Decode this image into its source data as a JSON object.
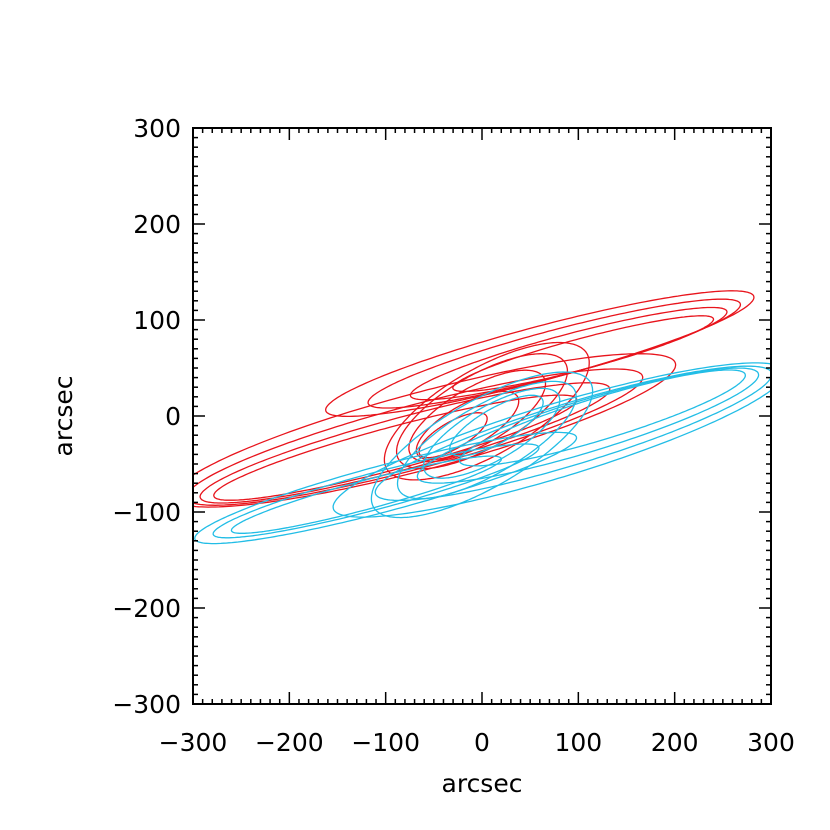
{
  "chart_data": {
    "type": "line",
    "xlabel": "arcsec",
    "ylabel": "arcsec",
    "xlim": [
      -300,
      300
    ],
    "ylim": [
      -300,
      300
    ],
    "x_ticks": [
      -300,
      -200,
      -100,
      0,
      100,
      200,
      300
    ],
    "y_ticks": [
      -300,
      -200,
      -100,
      0,
      100,
      200,
      300
    ],
    "x_tick_labels": [
      "−300",
      "−200",
      "−100",
      "0",
      "100",
      "200",
      "300"
    ],
    "y_tick_labels": [
      "−300",
      "−200",
      "−100",
      "0",
      "100",
      "200",
      "300"
    ],
    "grid": false,
    "legend": "none",
    "series": [
      {
        "color": "#e8141c",
        "contours": [
          {
            "cx": -60,
            "cy": -15,
            "a": 270,
            "b": 40,
            "angle_deg": 15
          },
          {
            "cx": -70,
            "cy": -22,
            "a": 245,
            "b": 33,
            "angle_deg": 15
          },
          {
            "cx": -80,
            "cy": -28,
            "a": 220,
            "b": 27,
            "angle_deg": 15
          },
          {
            "cx": -90,
            "cy": -33,
            "a": 195,
            "b": 22,
            "angle_deg": 15
          },
          {
            "cx": 60,
            "cy": 65,
            "a": 230,
            "b": 28,
            "angle_deg": 15
          },
          {
            "cx": 75,
            "cy": 65,
            "a": 200,
            "b": 24,
            "angle_deg": 15
          },
          {
            "cx": 90,
            "cy": 65,
            "a": 170,
            "b": 20,
            "angle_deg": 15
          },
          {
            "cx": 105,
            "cy": 65,
            "a": 140,
            "b": 16,
            "angle_deg": 15
          },
          {
            "cx": 5,
            "cy": 5,
            "a": 120,
            "b": 45,
            "angle_deg": 30
          },
          {
            "cx": 0,
            "cy": 5,
            "a": 100,
            "b": 38,
            "angle_deg": 30
          },
          {
            "cx": -5,
            "cy": 0,
            "a": 80,
            "b": 30,
            "angle_deg": 30
          },
          {
            "cx": -15,
            "cy": -10,
            "a": 60,
            "b": 22,
            "angle_deg": 30
          },
          {
            "cx": -30,
            "cy": -20,
            "a": 40,
            "b": 14,
            "angle_deg": 30
          }
        ]
      },
      {
        "color": "#22bde6",
        "contours": [
          {
            "cx": 80,
            "cy": -25,
            "a": 245,
            "b": 38,
            "angle_deg": 17
          },
          {
            "cx": 95,
            "cy": -18,
            "a": 215,
            "b": 32,
            "angle_deg": 17
          },
          {
            "cx": 110,
            "cy": -10,
            "a": 185,
            "b": 27,
            "angle_deg": 17
          },
          {
            "cx": 125,
            "cy": -2,
            "a": 155,
            "b": 22,
            "angle_deg": 17
          },
          {
            "cx": -100,
            "cy": -75,
            "a": 205,
            "b": 24,
            "angle_deg": 15
          },
          {
            "cx": -110,
            "cy": -78,
            "a": 175,
            "b": 19,
            "angle_deg": 15
          },
          {
            "cx": -120,
            "cy": -82,
            "a": 145,
            "b": 15,
            "angle_deg": 15
          },
          {
            "cx": 0,
            "cy": -30,
            "a": 130,
            "b": 45,
            "angle_deg": 30
          },
          {
            "cx": 5,
            "cy": -25,
            "a": 105,
            "b": 36,
            "angle_deg": 30
          },
          {
            "cx": 10,
            "cy": -18,
            "a": 80,
            "b": 28,
            "angle_deg": 30
          },
          {
            "cx": 15,
            "cy": -10,
            "a": 55,
            "b": 18,
            "angle_deg": 30
          }
        ]
      }
    ]
  }
}
